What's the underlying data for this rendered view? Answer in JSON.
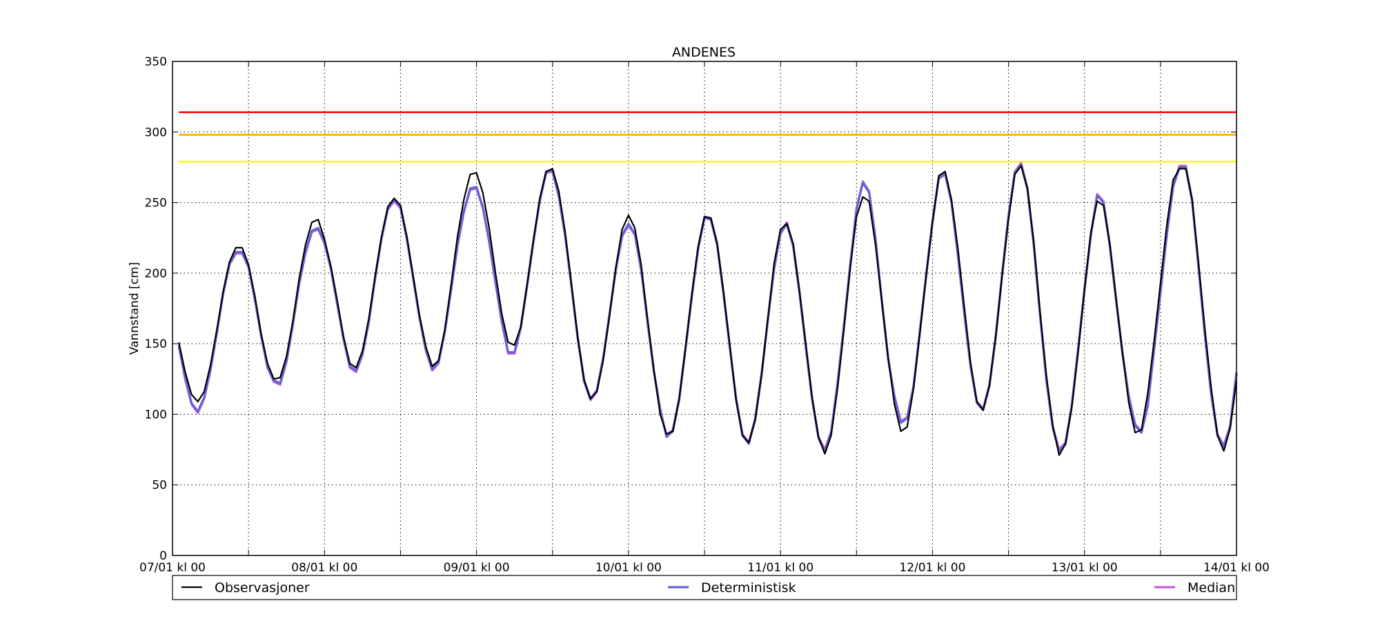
{
  "chart_data": {
    "type": "line",
    "title": "ANDENES",
    "xlabel": "",
    "ylabel": "Vannstand [cm]",
    "ylim": [
      0,
      350
    ],
    "yticks": [
      0,
      50,
      100,
      150,
      200,
      250,
      300,
      350
    ],
    "xlim_hours": [
      0,
      168
    ],
    "xtick_hours": [
      0,
      12,
      24,
      36,
      48,
      60,
      72,
      84,
      96,
      108,
      120,
      132,
      144,
      156,
      168
    ],
    "xtick_labels": [
      "07/01 kl 00",
      "",
      "08/01 kl 00",
      "",
      "09/01 kl 00",
      "",
      "10/01 kl 00",
      "",
      "11/01 kl 00",
      "",
      "12/01 kl 00",
      "",
      "13/01 kl 00",
      "",
      "14/01 kl 00"
    ],
    "x_unit": "hours from 07/01 kl 00",
    "grid": true,
    "legend_position": "bottom",
    "thresholds": [
      {
        "value": 314,
        "color": "#ff0000"
      },
      {
        "value": 298,
        "color": "#ffa500"
      },
      {
        "value": 279,
        "color": "#ffff00"
      }
    ],
    "series": [
      {
        "name": "Median",
        "color": "#c45fd6",
        "x": [
          1,
          2,
          3,
          4,
          5,
          6,
          7,
          8,
          9,
          10,
          11,
          12,
          13,
          14,
          15,
          16,
          17,
          18,
          19,
          20,
          21,
          22,
          23,
          24,
          25,
          26,
          27,
          28,
          29,
          30,
          31,
          32,
          33,
          34,
          35,
          36,
          37,
          38,
          39,
          40,
          41,
          42,
          43,
          44,
          45,
          46,
          47,
          48,
          49,
          50,
          51,
          52,
          53,
          54,
          55,
          56,
          57,
          58,
          59,
          60,
          61,
          62,
          63,
          64,
          65,
          66,
          67,
          68,
          69,
          70,
          71,
          72,
          73,
          74,
          75,
          76,
          77,
          78,
          79,
          80,
          81,
          82,
          83,
          84,
          85,
          86,
          87,
          88,
          89,
          90,
          91,
          92,
          93,
          94,
          95,
          96,
          97,
          98,
          99,
          100,
          101,
          102,
          103,
          104,
          105,
          106,
          107,
          108,
          109,
          110,
          111,
          112,
          113,
          114,
          115,
          116,
          117,
          118,
          119,
          120,
          121,
          122,
          123,
          124,
          125,
          126,
          127,
          128,
          129,
          130,
          131,
          132,
          133,
          134,
          135,
          136,
          137,
          138,
          139,
          140,
          141,
          142,
          143,
          144,
          145,
          146,
          147,
          148,
          149,
          150,
          151,
          152,
          153,
          154,
          155,
          156,
          157,
          158,
          159,
          160,
          161,
          162,
          163,
          164,
          165,
          166,
          167,
          168
        ],
        "y": [
          148,
          125,
          107,
          101,
          111,
          131,
          157,
          185,
          206,
          214,
          214,
          204,
          181,
          155,
          133,
          123,
          121,
          137,
          163,
          192,
          214,
          229,
          231,
          221,
          203,
          178,
          153,
          133,
          130,
          142,
          165,
          196,
          224,
          245,
          251,
          246,
          224,
          196,
          168,
          145,
          131,
          136,
          158,
          188,
          219,
          243,
          259,
          260,
          246,
          222,
          193,
          165,
          143,
          143,
          161,
          191,
          222,
          251,
          271,
          272,
          254,
          226,
          190,
          153,
          123,
          110,
          116,
          139,
          170,
          202,
          226,
          234,
          227,
          202,
          165,
          130,
          103,
          85,
          89,
          111,
          147,
          184,
          218,
          240,
          239,
          221,
          186,
          148,
          111,
          86,
          80,
          97,
          128,
          167,
          204,
          229,
          236,
          220,
          187,
          148,
          111,
          84,
          75,
          88,
          122,
          163,
          206,
          246,
          265,
          258,
          225,
          181,
          140,
          113,
          95,
          98,
          120,
          159,
          199,
          237,
          268,
          271,
          251,
          214,
          173,
          135,
          109,
          104,
          121,
          156,
          200,
          241,
          272,
          278,
          260,
          220,
          170,
          124,
          91,
          75,
          80,
          107,
          147,
          189,
          227,
          256,
          251,
          220,
          181,
          144,
          113,
          93,
          88,
          107,
          147,
          187,
          228,
          262,
          276,
          276,
          252,
          205,
          157,
          115,
          86,
          78,
          92,
          130
        ]
      },
      {
        "name": "Deterministisk",
        "color": "#6464d6",
        "x": [
          1,
          2,
          3,
          4,
          5,
          6,
          7,
          8,
          9,
          10,
          11,
          12,
          13,
          14,
          15,
          16,
          17,
          18,
          19,
          20,
          21,
          22,
          23,
          24,
          25,
          26,
          27,
          28,
          29,
          30,
          31,
          32,
          33,
          34,
          35,
          36,
          37,
          38,
          39,
          40,
          41,
          42,
          43,
          44,
          45,
          46,
          47,
          48,
          49,
          50,
          51,
          52,
          53,
          54,
          55,
          56,
          57,
          58,
          59,
          60,
          61,
          62,
          63,
          64,
          65,
          66,
          67,
          68,
          69,
          70,
          71,
          72,
          73,
          74,
          75,
          76,
          77,
          78,
          79,
          80,
          81,
          82,
          83,
          84,
          85,
          86,
          87,
          88,
          89,
          90,
          91,
          92,
          93,
          94,
          95,
          96,
          97,
          98,
          99,
          100,
          101,
          102,
          103,
          104,
          105,
          106,
          107,
          108,
          109,
          110,
          111,
          112,
          113,
          114,
          115,
          116,
          117,
          118,
          119,
          120,
          121,
          122,
          123,
          124,
          125,
          126,
          127,
          128,
          129,
          130,
          131,
          132,
          133,
          134,
          135,
          136,
          137,
          138,
          139,
          140,
          141,
          142,
          143,
          144,
          145,
          146,
          147,
          148,
          149,
          150,
          151,
          152,
          153,
          154,
          155,
          156,
          157,
          158,
          159,
          160,
          161,
          162,
          163,
          164,
          165,
          166,
          167,
          168
        ],
        "y": [
          149,
          126,
          108,
          102,
          112,
          132,
          158,
          186,
          207,
          215,
          215,
          205,
          182,
          156,
          134,
          124,
          122,
          138,
          164,
          193,
          215,
          230,
          232,
          222,
          204,
          179,
          154,
          134,
          131,
          143,
          166,
          197,
          225,
          246,
          252,
          247,
          225,
          197,
          169,
          146,
          132,
          137,
          159,
          189,
          220,
          244,
          260,
          261,
          247,
          223,
          194,
          166,
          144,
          144,
          162,
          192,
          223,
          252,
          272,
          273,
          255,
          227,
          191,
          154,
          124,
          111,
          117,
          140,
          171,
          203,
          227,
          235,
          228,
          203,
          166,
          131,
          104,
          84,
          88,
          110,
          146,
          183,
          217,
          239,
          238,
          220,
          185,
          147,
          110,
          85,
          79,
          96,
          127,
          166,
          203,
          228,
          235,
          219,
          186,
          147,
          110,
          83,
          74,
          87,
          121,
          162,
          205,
          245,
          264,
          257,
          224,
          180,
          139,
          112,
          94,
          97,
          119,
          158,
          198,
          236,
          267,
          270,
          250,
          213,
          172,
          134,
          108,
          103,
          120,
          155,
          199,
          240,
          271,
          277,
          259,
          219,
          169,
          123,
          90,
          74,
          79,
          106,
          146,
          188,
          226,
          255,
          250,
          219,
          180,
          143,
          112,
          92,
          87,
          106,
          146,
          186,
          227,
          261,
          275,
          275,
          251,
          204,
          156,
          114,
          85,
          77,
          91,
          129
        ]
      },
      {
        "name": "Observasjoner",
        "color": "#000000",
        "x": [
          1,
          2,
          3,
          4,
          5,
          6,
          7,
          8,
          9,
          10,
          11,
          12,
          13,
          14,
          15,
          16,
          17,
          18,
          19,
          20,
          21,
          22,
          23,
          24,
          25,
          26,
          27,
          28,
          29,
          30,
          31,
          32,
          33,
          34,
          35,
          36,
          37,
          38,
          39,
          40,
          41,
          42,
          43,
          44,
          45,
          46,
          47,
          48,
          49,
          50,
          51,
          52,
          53,
          54,
          55,
          56,
          57,
          58,
          59,
          60,
          61,
          62,
          63,
          64,
          65,
          66,
          67,
          68,
          69,
          70,
          71,
          72,
          73,
          74,
          75,
          76,
          77,
          78,
          79,
          80,
          81,
          82,
          83,
          84,
          85,
          86,
          87,
          88,
          89,
          90,
          91,
          92,
          93,
          94,
          95,
          96,
          97,
          98,
          99,
          100,
          101,
          102,
          103,
          104,
          105,
          106,
          107,
          108,
          109,
          110,
          111,
          112,
          113,
          114,
          115,
          116,
          117,
          118,
          119,
          120,
          121,
          122,
          123,
          124,
          125,
          126,
          127,
          128,
          129,
          130,
          131,
          132,
          133,
          134,
          135,
          136,
          137,
          138,
          139,
          140,
          141,
          142,
          143,
          144,
          145,
          146,
          147,
          148,
          149,
          150,
          151,
          152,
          153,
          154,
          155,
          156,
          157,
          158,
          159,
          160,
          161,
          162,
          163,
          164,
          165,
          166,
          167,
          168
        ],
        "y": [
          151,
          130,
          114,
          109,
          116,
          135,
          160,
          187,
          208,
          218,
          218,
          206,
          184,
          157,
          136,
          125,
          126,
          141,
          166,
          196,
          220,
          236,
          238,
          224,
          205,
          181,
          155,
          136,
          133,
          145,
          168,
          198,
          226,
          247,
          253,
          248,
          226,
          198,
          170,
          148,
          134,
          138,
          160,
          192,
          226,
          252,
          270,
          271,
          257,
          232,
          200,
          171,
          151,
          149,
          162,
          192,
          224,
          253,
          272,
          274,
          258,
          229,
          192,
          154,
          124,
          111,
          116,
          138,
          170,
          204,
          231,
          241,
          232,
          206,
          168,
          132,
          100,
          86,
          88,
          111,
          147,
          185,
          219,
          240,
          239,
          221,
          187,
          149,
          110,
          85,
          80,
          96,
          128,
          168,
          207,
          231,
          235,
          221,
          187,
          150,
          112,
          84,
          72,
          85,
          118,
          159,
          203,
          240,
          254,
          251,
          220,
          180,
          140,
          107,
          88,
          91,
          118,
          157,
          198,
          236,
          269,
          272,
          252,
          218,
          177,
          137,
          109,
          103,
          121,
          156,
          198,
          238,
          270,
          276,
          260,
          222,
          172,
          127,
          92,
          71,
          79,
          105,
          144,
          188,
          229,
          251,
          248,
          221,
          182,
          143,
          108,
          87,
          89,
          115,
          152,
          193,
          234,
          266,
          274,
          274,
          252,
          208,
          161,
          119,
          85,
          74,
          90,
          124
        ]
      }
    ]
  }
}
